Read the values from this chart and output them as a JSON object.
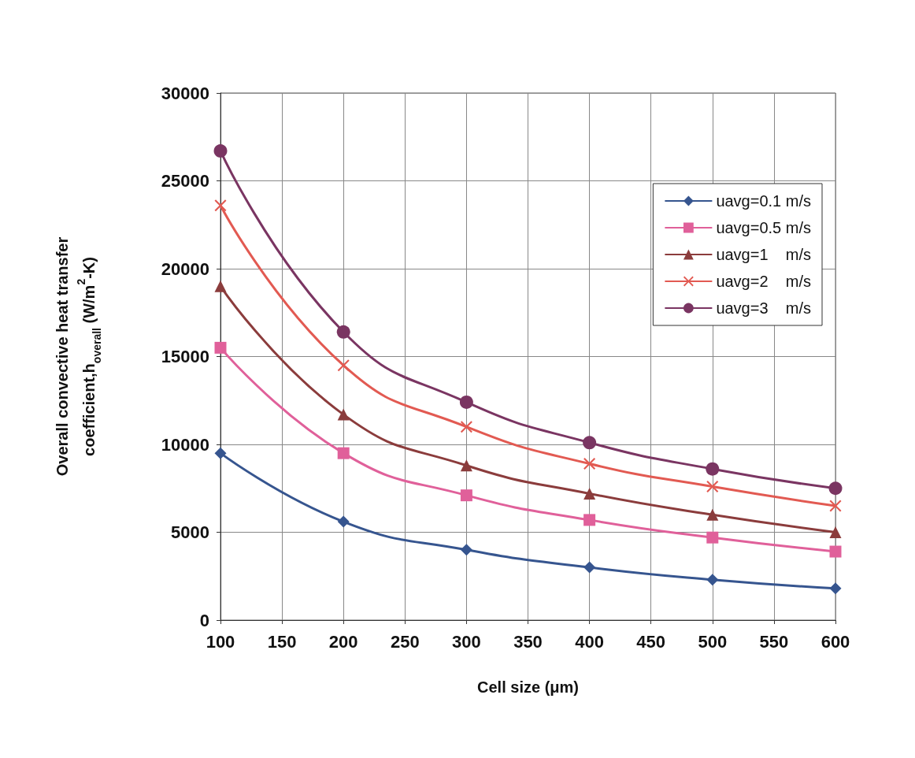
{
  "chart_data": {
    "type": "line",
    "xlabel": "Cell size (μm)",
    "ylabel": "Overall convective heat transfer\ncoefficient,h$_{overall}$ (W/m$^{2}$-K)",
    "x": [
      100,
      200,
      300,
      400,
      500,
      600
    ],
    "xlim": [
      100,
      600
    ],
    "xticks": [
      100,
      150,
      200,
      250,
      300,
      350,
      400,
      450,
      500,
      550,
      600
    ],
    "ylim": [
      0,
      30000
    ],
    "yticks": [
      0,
      5000,
      10000,
      15000,
      20000,
      25000,
      30000
    ],
    "grid": true,
    "legend": "top right",
    "line_style": "solid",
    "series": [
      {
        "name": "uavg=0.1 m/s",
        "color": "#36558f",
        "marker": "diamond",
        "values": [
          9500,
          5600,
          4000,
          3000,
          2300,
          1800
        ]
      },
      {
        "name": "uavg=0.5 m/s",
        "color": "#e0609a",
        "marker": "square",
        "values": [
          15500,
          9500,
          7100,
          5700,
          4700,
          3900
        ]
      },
      {
        "name": "uavg=1    m/s",
        "color": "#8b3c3c",
        "marker": "triangle",
        "values": [
          19000,
          11700,
          8800,
          7200,
          6000,
          5000
        ]
      },
      {
        "name": "uavg=2    m/s",
        "color": "#e25a52",
        "marker": "cross",
        "values": [
          23600,
          14500,
          11000,
          8900,
          7600,
          6500
        ]
      },
      {
        "name": "uavg=3    m/s",
        "color": "#7a3562",
        "marker": "circle",
        "values": [
          26700,
          16400,
          12400,
          10100,
          8600,
          7500
        ]
      }
    ]
  }
}
